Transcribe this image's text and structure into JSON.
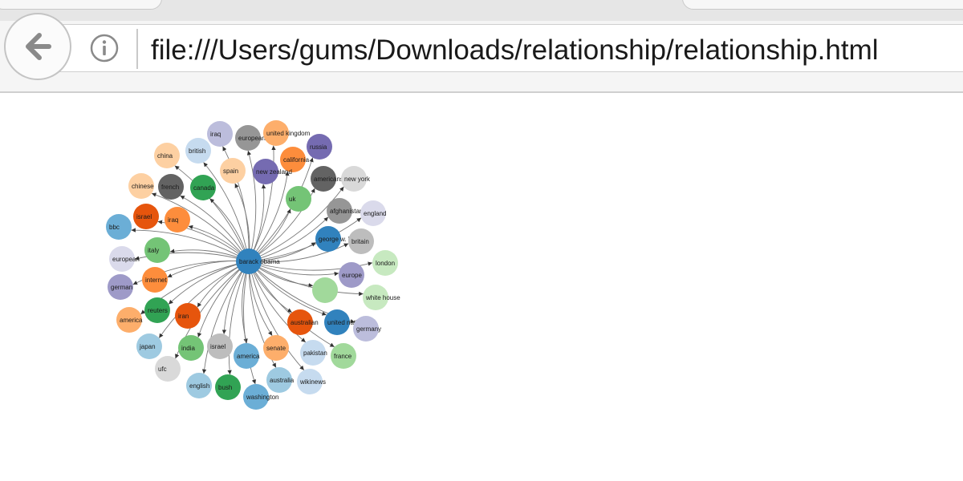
{
  "browser": {
    "back_icon": "back-arrow-icon",
    "info_icon": "info-icon",
    "address": "file:///Users/gums/Downloads/relationship/relationship.html"
  },
  "graph": {
    "center": {
      "label": "barack obama",
      "color": "#3182bd"
    },
    "nodes": [
      {
        "label": "iraq",
        "color": "#bcbddc"
      },
      {
        "label": "european union",
        "color": "#969696"
      },
      {
        "label": "united kingdom",
        "color": "#fdae6b"
      },
      {
        "label": "british",
        "color": "#c6dbef"
      },
      {
        "label": "russia",
        "color": "#756bb1"
      },
      {
        "label": "california",
        "color": "#fd8d3c"
      },
      {
        "label": "china",
        "color": "#fdd0a2"
      },
      {
        "label": "spain",
        "color": "#fdd0a2"
      },
      {
        "label": "new zealand",
        "color": "#756bb1"
      },
      {
        "label": "americans",
        "color": "#636363"
      },
      {
        "label": "new york",
        "color": "#d9d9d9"
      },
      {
        "label": "chinese",
        "color": "#fdd0a2"
      },
      {
        "label": "french",
        "color": "#636363"
      },
      {
        "label": "canada",
        "color": "#31a354"
      },
      {
        "label": "uk",
        "color": "#74c476"
      },
      {
        "label": "afghanistan",
        "color": "#969696"
      },
      {
        "label": "england",
        "color": "#dadaeb"
      },
      {
        "label": "israel",
        "color": "#e6550d"
      },
      {
        "label": "iraq",
        "color": "#fd8d3c"
      },
      {
        "label": "george w. bush",
        "color": "#3182bd"
      },
      {
        "label": "britain",
        "color": "#bdbdbd"
      },
      {
        "label": "bbc",
        "color": "#6baed6"
      },
      {
        "label": "italy",
        "color": "#74c476"
      },
      {
        "label": "london",
        "color": "#c7e9c0"
      },
      {
        "label": "european",
        "color": "#dadaeb"
      },
      {
        "label": "europe",
        "color": "#9e9ac8"
      },
      {
        "label": "internet",
        "color": "#fd8d3c"
      },
      {
        "label": "",
        "color": "#a1d99b"
      },
      {
        "label": "white house",
        "color": "#c7e9c0"
      },
      {
        "label": "german",
        "color": "#9e9ac8"
      },
      {
        "label": "reuters",
        "color": "#31a354"
      },
      {
        "label": "america",
        "color": "#fdae6b"
      },
      {
        "label": "iran",
        "color": "#e6550d"
      },
      {
        "label": "australian",
        "color": "#e6550d"
      },
      {
        "label": "united nations",
        "color": "#3182bd"
      },
      {
        "label": "germany",
        "color": "#bcbddc"
      },
      {
        "label": "japan",
        "color": "#9ecae1"
      },
      {
        "label": "india",
        "color": "#74c476"
      },
      {
        "label": "israel",
        "color": "#bdbdbd"
      },
      {
        "label": "america",
        "color": "#6baed6"
      },
      {
        "label": "senate",
        "color": "#fdae6b"
      },
      {
        "label": "pakistan",
        "color": "#c6dbef"
      },
      {
        "label": "france",
        "color": "#a1d99b"
      },
      {
        "label": "ufc",
        "color": "#d9d9d9"
      },
      {
        "label": "english",
        "color": "#9ecae1"
      },
      {
        "label": "bush",
        "color": "#31a354"
      },
      {
        "label": "australia",
        "color": "#9ecae1"
      },
      {
        "label": "wikinews",
        "color": "#c6dbef"
      },
      {
        "label": "washington",
        "color": "#6baed6"
      }
    ]
  }
}
